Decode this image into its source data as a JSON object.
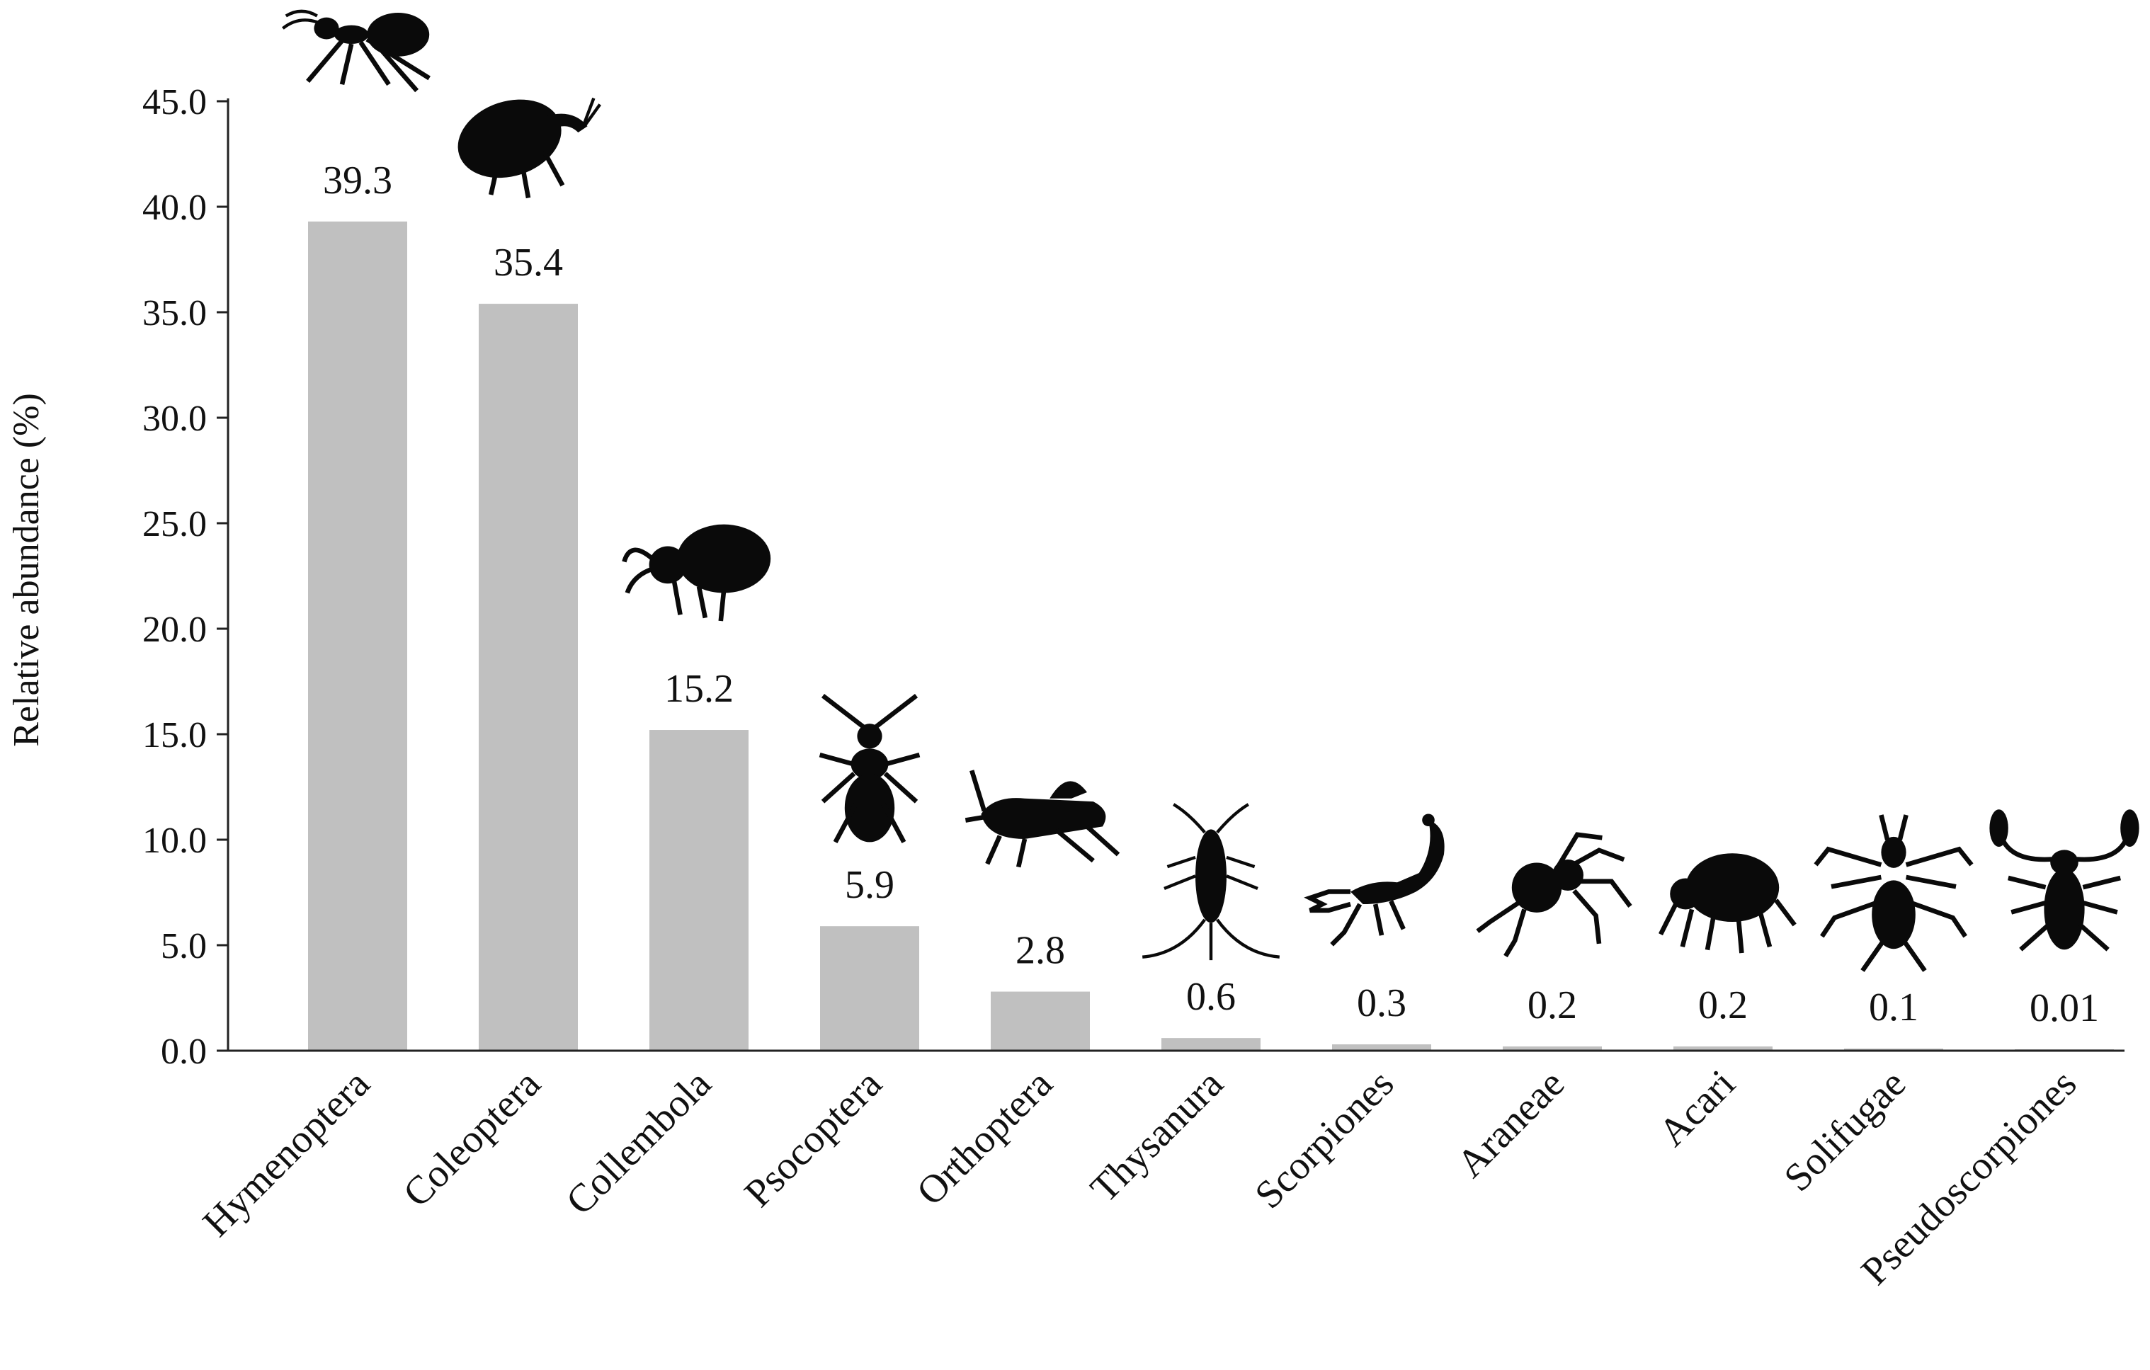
{
  "chart_data": {
    "type": "bar",
    "title": "",
    "xlabel": "",
    "ylabel": "Relative abundance (%)",
    "ylim": [
      0,
      45
    ],
    "yticks": [
      "0.0",
      "5.0",
      "10.0",
      "15.0",
      "20.0",
      "25.0",
      "30.0",
      "35.0",
      "40.0",
      "45.0"
    ],
    "grid": false,
    "legend": "none",
    "categories": [
      "Hymenoptera",
      "Coleoptera",
      "Collembola",
      "Psocoptera",
      "Orthoptera",
      "Thysanura",
      "Scorpiones",
      "Araneae",
      "Acari",
      "Solifugae",
      "Pseudoscorpiones"
    ],
    "values": [
      39.3,
      35.4,
      15.2,
      5.9,
      2.8,
      0.6,
      0.3,
      0.2,
      0.2,
      0.1,
      0.01
    ],
    "value_labels": [
      "39.3",
      "35.4",
      "15.2",
      "5.9",
      "2.8",
      "0.6",
      "0.3",
      "0.2",
      "0.2",
      "0.1",
      "0.01"
    ],
    "silhouettes": [
      "ant-icon",
      "weevil-icon",
      "springtail-icon",
      "booklouse-icon",
      "cricket-icon",
      "silverfish-icon",
      "scorpion-icon",
      "spider-icon",
      "mite-icon",
      "camel-spider-icon",
      "pseudoscorpion-icon"
    ],
    "colors": {
      "bar": "#c0c0c0",
      "axis": "#222222",
      "silhouette": "#0a0a0a"
    }
  }
}
